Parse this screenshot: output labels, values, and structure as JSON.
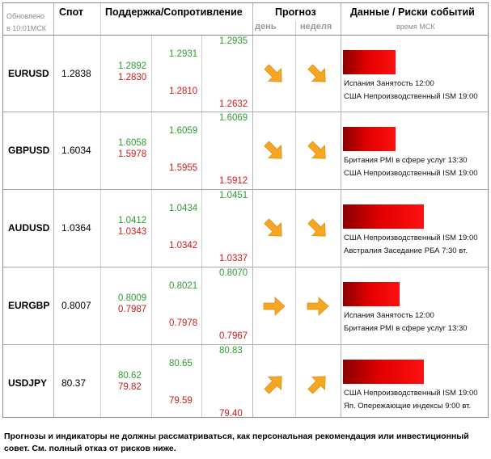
{
  "header": {
    "updated_label": "Обновлено",
    "updated_time": "в 10:01МСК",
    "spot": "Спот",
    "support_resistance": "Поддержка/Сопротивление",
    "forecast": "Прогноз",
    "day": "день",
    "week": "неделя",
    "events": "Данные / Риски событий",
    "events_time": "время МСК"
  },
  "rows": [
    {
      "pair": "EURUSD",
      "spot": "1.2838",
      "s1_up": "1.2892",
      "s1_dn": "1.2830",
      "s2_up": "1.2931",
      "s2_dn": "1.2810",
      "s3_up": "1.2935",
      "s3_dn": "1.2632",
      "day_dir": "down-right",
      "week_dir": "down-right",
      "risk_level": 0.65,
      "event1": "Испания Занятость 12:00",
      "event2": "США Непроизводственный ISM 19:00"
    },
    {
      "pair": "GBPUSD",
      "spot": "1.6034",
      "s1_up": "1.6058",
      "s1_dn": "1.5978",
      "s2_up": "1.6059",
      "s2_dn": "1.5955",
      "s3_up": "1.6069",
      "s3_dn": "1.5912",
      "day_dir": "down-right",
      "week_dir": "down-right",
      "risk_level": 0.65,
      "event1": "Британия PMI в сфере услуг 13:30",
      "event2": "США Непроизводственный ISM 19:00"
    },
    {
      "pair": "AUDUSD",
      "spot": "1.0364",
      "s1_up": "1.0412",
      "s1_dn": "1.0343",
      "s2_up": "1.0434",
      "s2_dn": "1.0342",
      "s3_up": "1.0451",
      "s3_dn": "1.0337",
      "day_dir": "down-right",
      "week_dir": "down-right",
      "risk_level": 1.0,
      "event1": "США Непроизводственный ISM 19:00",
      "event2": "Австралия Заседание РБА 7:30 вт."
    },
    {
      "pair": "EURGBP",
      "spot": "0.8007",
      "s1_up": "0.8009",
      "s1_dn": "0.7987",
      "s2_up": "0.8021",
      "s2_dn": "0.7978",
      "s3_up": "0.8070",
      "s3_dn": "0.7967",
      "day_dir": "right",
      "week_dir": "right",
      "risk_level": 0.7,
      "event1": "Испания Занятость 12:00",
      "event2": "Британия PMI в сфере услуг 13:30"
    },
    {
      "pair": "USDJPY",
      "spot": "80.37",
      "s1_up": "80.62",
      "s1_dn": "79.82",
      "s2_up": "80.65",
      "s2_dn": "79.59",
      "s3_up": "80.83",
      "s3_dn": "79.40",
      "day_dir": "up-right",
      "week_dir": "up-right",
      "risk_level": 1.0,
      "event1": "США Непроизводственный ISM 19:00",
      "event2": "Яп. Опережающие индексы 9:00 вт."
    }
  ],
  "disclaimer": "Прогнозы и индикаторы не должны рассматриваться, как персональная рекомендация или инвестиционный совет. См. полный отказ от рисков ниже.",
  "colors": {
    "support": "#2e9e2e",
    "resistance": "#d11a1a",
    "arrow": "#f5a623",
    "risk_bar": "#e10000"
  }
}
